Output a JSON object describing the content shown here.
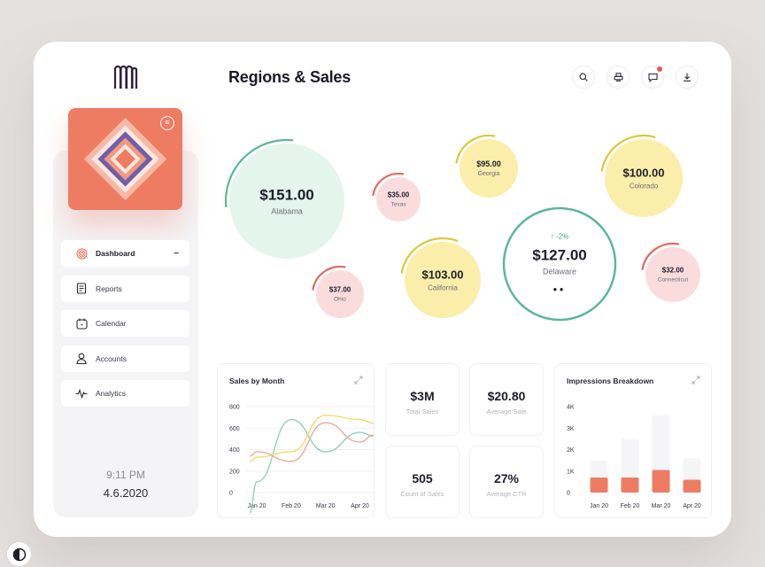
{
  "header": {
    "title": "Regions & Sales"
  },
  "sidebar": {
    "items": [
      {
        "label": "Dashboard",
        "icon": "spiral-icon",
        "active": true
      },
      {
        "label": "Reports",
        "icon": "document-icon",
        "active": false
      },
      {
        "label": "Calendar",
        "icon": "calendar-icon",
        "active": false
      },
      {
        "label": "Accounts",
        "icon": "user-icon",
        "active": false
      },
      {
        "label": "Analytics",
        "icon": "pulse-icon",
        "active": false
      }
    ],
    "collapse_symbol": "−",
    "time": "9:11 PM",
    "date": "4.6.2020"
  },
  "toolbar": {
    "icons": [
      "search-icon",
      "printer-icon",
      "chat-icon",
      "download-icon"
    ],
    "notification_color": "#ee5a5a"
  },
  "regions": [
    {
      "name": "Alabama",
      "amount": "$151.00",
      "fill": "#e3f5ec",
      "arc": "#5bb896"
    },
    {
      "name": "Texas",
      "amount": "$35.00",
      "fill": "#fbdcdc",
      "arc": "#e06a62"
    },
    {
      "name": "Georgia",
      "amount": "$95.00",
      "fill": "#fbeeaa",
      "arc": "#dcc83a"
    },
    {
      "name": "Colorado",
      "amount": "$100.00",
      "fill": "#fbeeaa",
      "arc": "#dcc83a"
    },
    {
      "name": "Ohio",
      "amount": "$37.00",
      "fill": "#fbdcdc",
      "arc": "#e06a62"
    },
    {
      "name": "California",
      "amount": "$103.00",
      "fill": "#fbeeaa",
      "arc": "#dcc83a"
    },
    {
      "name": "Delaware",
      "amount": "$127.00",
      "fill": "#ffffff",
      "arc": "#5bb896",
      "change": "-2%"
    },
    {
      "name": "Connecticut",
      "amount": "$32.00",
      "fill": "#fbdcdc",
      "arc": "#e06a62"
    }
  ],
  "sales_by_month": {
    "title": "Sales by Month",
    "chart_data": {
      "type": "line",
      "categories": [
        "Jan 20",
        "Feb 20",
        "Mar 20",
        "Apr 20"
      ],
      "ylim": [
        0,
        800
      ],
      "yticks": [
        "0",
        "200",
        "400",
        "600",
        "800"
      ],
      "series": [
        {
          "color": "#8fd3b8",
          "values": [
            100,
            680,
            380,
            560
          ]
        },
        {
          "color": "#f3dc6a",
          "values": [
            330,
            380,
            720,
            680
          ]
        },
        {
          "color": "#f0a89a",
          "values": [
            380,
            290,
            650,
            470
          ]
        }
      ]
    }
  },
  "stats": [
    {
      "value": "$3M",
      "label": "Total Sales"
    },
    {
      "value": "$20.80",
      "label": "Average Sale"
    },
    {
      "value": "505",
      "label": "Count of Sales"
    },
    {
      "value": "27%",
      "label": "Average CTR"
    }
  ],
  "impressions": {
    "title": "Impressions Breakdown",
    "chart_data": {
      "type": "bar",
      "categories": [
        "Jan 20",
        "Feb 20",
        "Mar 20",
        "Apr 20"
      ],
      "ylim": [
        0,
        4000
      ],
      "yticks": [
        "0",
        "1K",
        "2K",
        "3K",
        "4K"
      ],
      "series": [
        {
          "color": "#f5f5f8",
          "values": [
            1500,
            2500,
            3600,
            1600
          ]
        },
        {
          "color": "#ee7c63",
          "values": [
            700,
            700,
            1050,
            600
          ]
        }
      ]
    }
  }
}
